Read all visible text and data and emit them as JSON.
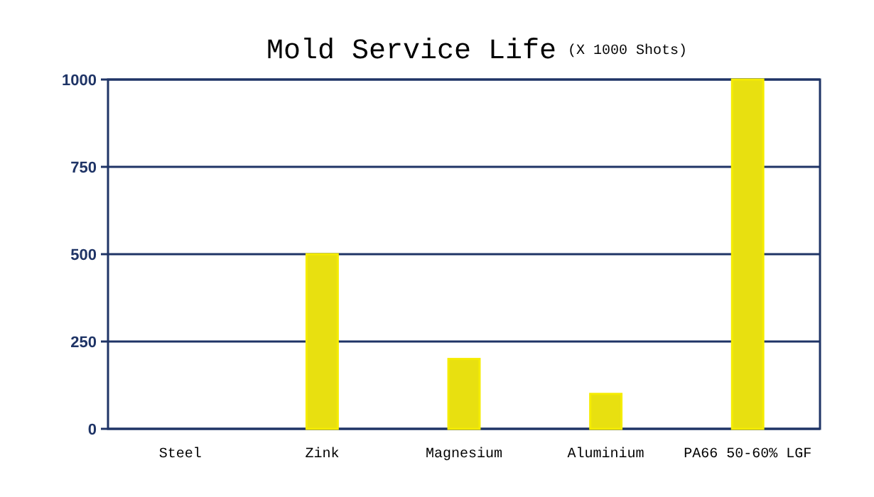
{
  "chart_data": {
    "type": "bar",
    "title": "Mold Service Life",
    "subtitle": "(X 1000 Shots)",
    "categories": [
      "Steel",
      "Zink",
      "Magnesium",
      "Aluminium",
      "PA66 50-60% LGF"
    ],
    "values": [
      null,
      500,
      200,
      100,
      1000
    ],
    "color": "#e8e010",
    "ylim": [
      0,
      1000
    ],
    "yticks": [
      0,
      250,
      500,
      750,
      1000
    ],
    "grid": "y"
  }
}
